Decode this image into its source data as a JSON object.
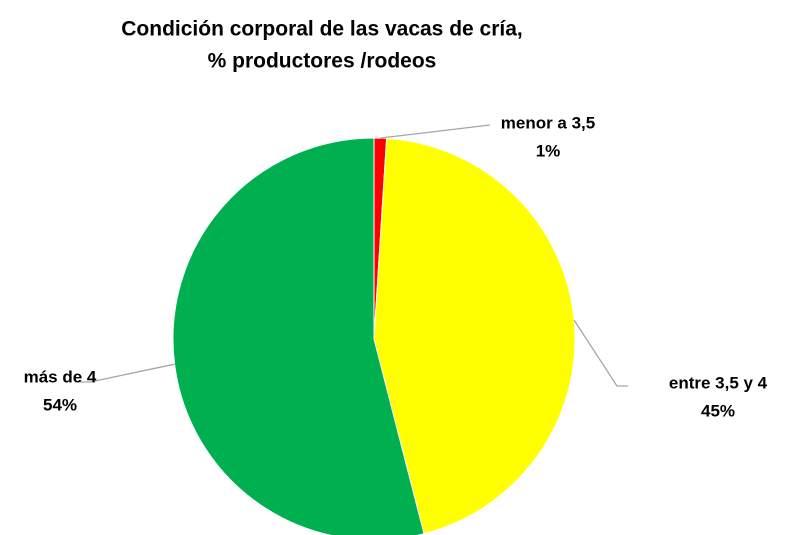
{
  "chart_data": {
    "type": "pie",
    "title": [
      "Condición corporal de las vacas de cría,",
      "% productores /rodeos"
    ],
    "categories": [
      "menor a 3,5",
      "entre 3,5 y 4",
      "más de 4"
    ],
    "values": [
      1,
      45,
      54
    ],
    "value_labels": [
      "1%",
      "45%",
      "54%"
    ],
    "colors": [
      "#ff0000",
      "#ffff00",
      "#00b050"
    ]
  }
}
